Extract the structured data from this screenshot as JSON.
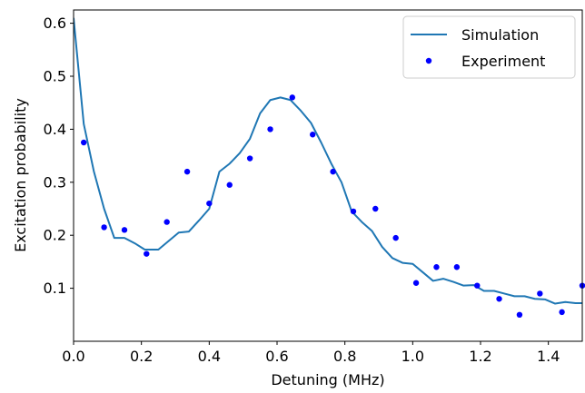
{
  "chart_data": {
    "type": "line",
    "xlabel": "Detuning (MHz)",
    "ylabel": "Excitation probability",
    "xlim": [
      0,
      1.5
    ],
    "ylim": [
      0.0,
      0.625
    ],
    "xticks": [
      0.0,
      0.2,
      0.4,
      0.6,
      0.8,
      1.0,
      1.2,
      1.4
    ],
    "xtick_labels": [
      "0.0",
      "0.2",
      "0.4",
      "0.6",
      "0.8",
      "1.0",
      "1.2",
      "1.4"
    ],
    "yticks": [
      0.1,
      0.2,
      0.3,
      0.4,
      0.5,
      0.6
    ],
    "ytick_labels": [
      "0.1",
      "0.2",
      "0.3",
      "0.4",
      "0.5",
      "0.6"
    ],
    "grid": false,
    "legend_position": "top-right",
    "series": [
      {
        "name": "Simulation",
        "kind": "line",
        "color": "#1f77b4",
        "x": [
          0.0,
          0.03,
          0.06,
          0.09,
          0.12,
          0.15,
          0.18,
          0.21,
          0.25,
          0.31,
          0.34,
          0.37,
          0.4,
          0.43,
          0.46,
          0.49,
          0.52,
          0.55,
          0.58,
          0.61,
          0.64,
          0.67,
          0.7,
          0.73,
          0.76,
          0.79,
          0.82,
          0.85,
          0.88,
          0.91,
          0.94,
          0.97,
          1.0,
          1.03,
          1.06,
          1.09,
          1.12,
          1.15,
          1.18,
          1.21,
          1.24,
          1.27,
          1.3,
          1.33,
          1.36,
          1.39,
          1.42,
          1.45,
          1.48,
          1.5
        ],
        "y": [
          0.61,
          0.41,
          0.32,
          0.25,
          0.195,
          0.195,
          0.185,
          0.173,
          0.173,
          0.205,
          0.207,
          0.228,
          0.25,
          0.32,
          0.335,
          0.355,
          0.382,
          0.43,
          0.455,
          0.46,
          0.455,
          0.435,
          0.412,
          0.375,
          0.335,
          0.3,
          0.245,
          0.225,
          0.208,
          0.178,
          0.157,
          0.148,
          0.146,
          0.13,
          0.114,
          0.118,
          0.112,
          0.105,
          0.106,
          0.095,
          0.095,
          0.09,
          0.085,
          0.085,
          0.08,
          0.079,
          0.071,
          0.074,
          0.072,
          0.072
        ]
      },
      {
        "name": "Experiment",
        "kind": "scatter",
        "color": "#0000ff",
        "x": [
          0.03,
          0.09,
          0.15,
          0.215,
          0.275,
          0.335,
          0.4,
          0.46,
          0.52,
          0.58,
          0.645,
          0.705,
          0.765,
          0.825,
          0.89,
          0.95,
          1.01,
          1.07,
          1.13,
          1.19,
          1.255,
          1.315,
          1.375,
          1.44,
          1.5
        ],
        "y": [
          0.375,
          0.215,
          0.21,
          0.165,
          0.225,
          0.32,
          0.26,
          0.295,
          0.345,
          0.4,
          0.46,
          0.39,
          0.32,
          0.245,
          0.25,
          0.195,
          0.11,
          0.14,
          0.14,
          0.105,
          0.08,
          0.05,
          0.09,
          0.055,
          0.105
        ]
      }
    ]
  }
}
